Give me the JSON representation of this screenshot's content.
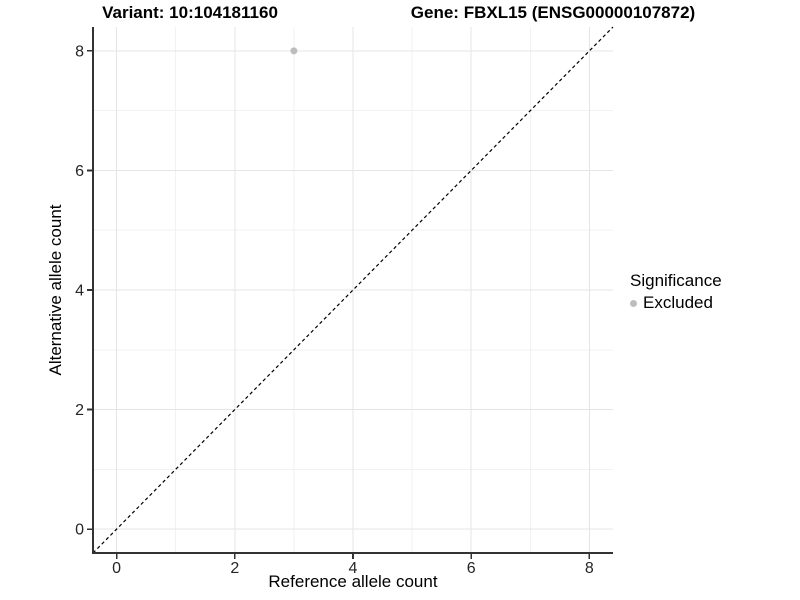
{
  "chart_data": {
    "type": "scatter",
    "title_left": "Variant: 10:104181160",
    "title_right": "Gene: FBXL15 (ENSG00000107872)",
    "xlabel": "Reference allele count",
    "ylabel": "Alternative allele count",
    "xlim": [
      -0.4,
      8.4
    ],
    "ylim": [
      -0.4,
      8.4
    ],
    "x_ticks": [
      0,
      2,
      4,
      6,
      8
    ],
    "y_ticks": [
      0,
      2,
      4,
      6,
      8
    ],
    "x_minor_ticks": [
      1,
      3,
      5,
      7
    ],
    "y_minor_ticks": [
      1,
      3,
      5,
      7
    ],
    "grid": "major+minor",
    "identity_line": {
      "style": "dashed",
      "color": "#000000",
      "from": [
        -0.4,
        -0.4
      ],
      "to": [
        8.4,
        8.4
      ]
    },
    "series": [
      {
        "name": "Excluded",
        "color": "#bdbdbd",
        "points": [
          [
            3,
            8
          ]
        ]
      }
    ],
    "legend": {
      "title": "Significance",
      "position": "right",
      "items": [
        {
          "label": "Excluded",
          "color": "#bdbdbd",
          "marker": "circle"
        }
      ]
    }
  },
  "colors": {
    "background": "#ffffff",
    "axis_line": "#333333",
    "tick_mark": "#333333",
    "grid_major": "#e5e5e5",
    "grid_minor": "#f2f2f2",
    "tick_text": "#262626",
    "point": "#bdbdbd"
  }
}
